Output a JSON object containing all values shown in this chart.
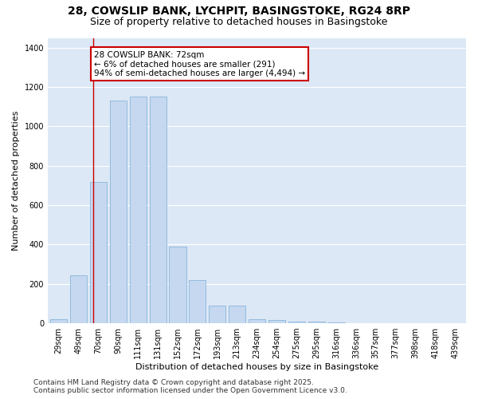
{
  "title_line1": "28, COWSLIP BANK, LYCHPIT, BASINGSTOKE, RG24 8RP",
  "title_line2": "Size of property relative to detached houses in Basingstoke",
  "xlabel": "Distribution of detached houses by size in Basingstoke",
  "ylabel": "Number of detached properties",
  "categories": [
    "29sqm",
    "49sqm",
    "70sqm",
    "90sqm",
    "111sqm",
    "131sqm",
    "152sqm",
    "172sqm",
    "193sqm",
    "213sqm",
    "234sqm",
    "254sqm",
    "275sqm",
    "295sqm",
    "316sqm",
    "336sqm",
    "357sqm",
    "377sqm",
    "398sqm",
    "418sqm",
    "439sqm"
  ],
  "values": [
    20,
    245,
    720,
    1130,
    1150,
    1150,
    390,
    220,
    90,
    90,
    20,
    15,
    10,
    8,
    5,
    0,
    0,
    0,
    0,
    0,
    0
  ],
  "bar_color": "#c5d8f0",
  "bar_edge_color": "#7aadd4",
  "plot_bg_color": "#dce8f5",
  "fig_bg_color": "#ffffff",
  "annotation_text": "28 COWSLIP BANK: 72sqm\n← 6% of detached houses are smaller (291)\n94% of semi-detached houses are larger (4,494) →",
  "annotation_box_facecolor": "#ffffff",
  "annotation_box_edgecolor": "#cc0000",
  "red_line_color": "#cc0000",
  "red_line_x": 2.0,
  "ylim": [
    0,
    1450
  ],
  "yticks": [
    0,
    200,
    400,
    600,
    800,
    1000,
    1200,
    1400
  ],
  "grid_color": "#ffffff",
  "title_fontsize": 10,
  "subtitle_fontsize": 9,
  "axis_label_fontsize": 8,
  "tick_fontsize": 7,
  "annotation_fontsize": 7.5,
  "footer_fontsize": 6.5,
  "footer_line1": "Contains HM Land Registry data © Crown copyright and database right 2025.",
  "footer_line2": "Contains public sector information licensed under the Open Government Licence v3.0."
}
